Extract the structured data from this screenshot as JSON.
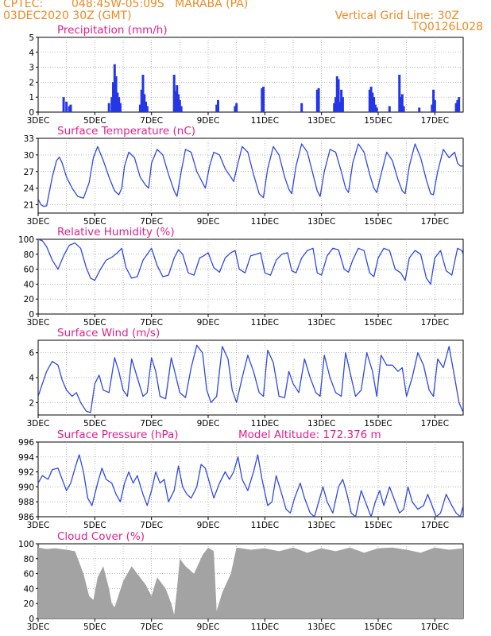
{
  "header": {
    "source": "CPTEC:",
    "location": "048:45W-05:09S   MARABA (PA)",
    "run": "03DEC2020 30Z (GMT)",
    "grid_note": "Vertical Grid Line: 30Z",
    "code": "TQ0126L028"
  },
  "colors": {
    "header": "#ee8a22",
    "title": "#e0208c",
    "series": "#2f49e3",
    "bars": "#2436e6",
    "cloud": "#a3a3a3",
    "grid": "#9a9a9a"
  },
  "chart_data": [
    {
      "type": "bar",
      "title": "Precipitation (mm/h)",
      "ylim": [
        0,
        5
      ],
      "yticks": [
        "0",
        "1",
        "2",
        "3",
        "4",
        "5"
      ],
      "x_start": "3DEC",
      "x_end": "18DEC",
      "xticks": [
        "3DEC",
        "5DEC",
        "7DEC",
        "9DEC",
        "11DEC",
        "13DEC",
        "15DEC",
        "17DEC"
      ],
      "grid": true,
      "x": [
        3.9,
        4.0,
        4.1,
        4.15,
        5.5,
        5.6,
        5.65,
        5.7,
        5.75,
        5.8,
        5.85,
        5.9,
        6.6,
        6.65,
        6.7,
        6.75,
        6.8,
        6.85,
        7.8,
        7.85,
        7.9,
        7.95,
        8.0,
        8.05,
        9.3,
        9.35,
        9.95,
        10.0,
        10.9,
        10.95,
        12.3,
        12.85,
        12.9,
        13.45,
        13.5,
        13.55,
        13.6,
        13.65,
        13.7,
        13.75,
        14.7,
        14.75,
        14.8,
        14.85,
        14.9,
        14.95,
        15.4,
        15.75,
        15.8,
        15.85,
        15.9,
        16.45,
        16.9,
        16.95,
        17.0,
        17.75,
        17.8,
        17.85
      ],
      "values": [
        1.0,
        0.7,
        0.4,
        0.5,
        0.6,
        1.0,
        2.0,
        3.2,
        2.4,
        1.3,
        1.0,
        0.6,
        0.5,
        1.5,
        2.5,
        1.2,
        0.7,
        0.4,
        2.5,
        1.4,
        1.8,
        1.2,
        0.8,
        0.4,
        0.5,
        0.8,
        0.4,
        0.6,
        1.6,
        1.7,
        0.6,
        1.5,
        1.6,
        0.6,
        1.0,
        2.4,
        2.2,
        0.7,
        1.5,
        1.0,
        1.5,
        1.7,
        1.3,
        1.0,
        0.5,
        0.3,
        0.4,
        2.5,
        1.0,
        1.2,
        0.4,
        0.3,
        0.5,
        1.5,
        0.8,
        0.6,
        0.8,
        1.0
      ]
    },
    {
      "type": "line",
      "title": "Surface Temperature (nC)",
      "ylim": [
        19.5,
        33
      ],
      "yticks": [
        "21",
        "24",
        "27",
        "30",
        "33"
      ],
      "x_start": "3DEC",
      "x_end": "18DEC",
      "xticks": [
        "3DEC",
        "5DEC",
        "7DEC",
        "9DEC",
        "11DEC",
        "13DEC",
        "15DEC",
        "17DEC"
      ],
      "grid": true,
      "x": [
        3.0,
        3.1,
        3.2,
        3.3,
        3.5,
        3.65,
        3.75,
        3.85,
        4.0,
        4.2,
        4.4,
        4.6,
        4.8,
        4.95,
        5.1,
        5.3,
        5.5,
        5.7,
        5.85,
        5.95,
        6.05,
        6.2,
        6.4,
        6.6,
        6.8,
        6.9,
        7.0,
        7.2,
        7.4,
        7.6,
        7.8,
        7.9,
        8.05,
        8.2,
        8.4,
        8.6,
        8.8,
        8.9,
        9.05,
        9.2,
        9.4,
        9.6,
        9.8,
        9.9,
        10.05,
        10.2,
        10.4,
        10.6,
        10.8,
        10.95,
        11.1,
        11.3,
        11.5,
        11.7,
        11.85,
        11.95,
        12.1,
        12.3,
        12.5,
        12.7,
        12.85,
        12.95,
        13.1,
        13.3,
        13.5,
        13.7,
        13.85,
        13.95,
        14.1,
        14.3,
        14.5,
        14.7,
        14.85,
        14.95,
        15.1,
        15.3,
        15.5,
        15.7,
        15.85,
        15.95,
        16.1,
        16.3,
        16.5,
        16.7,
        16.85,
        16.95,
        17.1,
        17.3,
        17.5,
        17.7,
        17.8,
        17.9,
        18.0
      ],
      "values": [
        22.0,
        21.0,
        20.7,
        20.8,
        26.0,
        29.0,
        29.6,
        28.5,
        26.0,
        24.0,
        22.5,
        22.2,
        25.0,
        29.5,
        31.5,
        29.0,
        26.0,
        23.5,
        22.8,
        24.0,
        28.0,
        30.5,
        29.5,
        26.0,
        24.5,
        24.0,
        28.5,
        31.0,
        30.0,
        26.5,
        23.5,
        22.5,
        27.0,
        31.0,
        30.5,
        27.0,
        25.0,
        24.0,
        28.0,
        30.5,
        30.0,
        27.5,
        26.0,
        25.2,
        28.5,
        31.5,
        30.5,
        26.5,
        23.0,
        22.3,
        27.5,
        31.5,
        30.0,
        26.0,
        23.8,
        23.0,
        28.0,
        32.0,
        30.5,
        26.5,
        23.5,
        22.5,
        27.0,
        31.0,
        30.5,
        27.0,
        24.0,
        23.2,
        28.5,
        32.0,
        30.5,
        26.5,
        24.0,
        23.2,
        26.5,
        30.5,
        29.0,
        25.5,
        23.5,
        23.0,
        28.0,
        32.0,
        29.5,
        25.5,
        23.0,
        22.8,
        27.0,
        31.0,
        29.5,
        30.5,
        28.5,
        28.0,
        28.0
      ]
    },
    {
      "type": "line",
      "title": "Relative Humidity (%)",
      "ylim": [
        0,
        100
      ],
      "yticks": [
        "0",
        "20",
        "40",
        "60",
        "80",
        "100"
      ],
      "x_start": "3DEC",
      "x_end": "18DEC",
      "xticks": [
        "3DEC",
        "5DEC",
        "7DEC",
        "9DEC",
        "11DEC",
        "13DEC",
        "15DEC",
        "17DEC"
      ],
      "grid": true,
      "x": [
        3.0,
        3.15,
        3.3,
        3.5,
        3.7,
        3.9,
        4.1,
        4.3,
        4.5,
        4.7,
        4.85,
        5.0,
        5.2,
        5.4,
        5.6,
        5.8,
        5.95,
        6.1,
        6.3,
        6.5,
        6.7,
        6.85,
        7.0,
        7.2,
        7.4,
        7.6,
        7.8,
        7.95,
        8.1,
        8.3,
        8.5,
        8.7,
        8.85,
        9.0,
        9.2,
        9.4,
        9.6,
        9.8,
        9.95,
        10.1,
        10.3,
        10.5,
        10.7,
        10.85,
        11.0,
        11.2,
        11.4,
        11.6,
        11.8,
        11.95,
        12.1,
        12.3,
        12.5,
        12.7,
        12.85,
        13.0,
        13.2,
        13.4,
        13.6,
        13.8,
        13.95,
        14.1,
        14.3,
        14.5,
        14.7,
        14.85,
        15.0,
        15.2,
        15.4,
        15.6,
        15.8,
        15.95,
        16.1,
        16.3,
        16.5,
        16.7,
        16.85,
        17.0,
        17.2,
        17.4,
        17.6,
        17.8,
        17.95,
        18.0
      ],
      "values": [
        100,
        98,
        90,
        72,
        60,
        78,
        92,
        95,
        88,
        62,
        48,
        45,
        60,
        72,
        76,
        82,
        88,
        62,
        48,
        50,
        72,
        80,
        88,
        65,
        50,
        52,
        75,
        86,
        80,
        55,
        52,
        75,
        78,
        82,
        62,
        56,
        75,
        82,
        85,
        60,
        55,
        78,
        80,
        82,
        55,
        52,
        72,
        80,
        82,
        58,
        55,
        75,
        85,
        88,
        55,
        52,
        78,
        88,
        86,
        60,
        56,
        72,
        88,
        85,
        55,
        50,
        75,
        88,
        85,
        60,
        55,
        45,
        75,
        85,
        80,
        48,
        40,
        75,
        85,
        58,
        52,
        88,
        85,
        80
      ]
    },
    {
      "type": "line",
      "title": "Surface Wind (m/s)",
      "ylim": [
        1,
        7
      ],
      "yticks": [
        "2",
        "4",
        "6"
      ],
      "x_start": "3DEC",
      "x_end": "18DEC",
      "xticks": [
        "3DEC",
        "5DEC",
        "7DEC",
        "9DEC",
        "11DEC",
        "13DEC",
        "15DEC",
        "17DEC"
      ],
      "grid": true,
      "x": [
        3.0,
        3.15,
        3.3,
        3.5,
        3.7,
        3.85,
        4.0,
        4.2,
        4.35,
        4.5,
        4.7,
        4.85,
        5.0,
        5.15,
        5.3,
        5.5,
        5.7,
        5.85,
        6.0,
        6.15,
        6.3,
        6.5,
        6.7,
        6.85,
        7.0,
        7.15,
        7.3,
        7.5,
        7.7,
        7.85,
        8.0,
        8.2,
        8.4,
        8.6,
        8.8,
        8.95,
        9.1,
        9.3,
        9.5,
        9.7,
        9.85,
        10.0,
        10.2,
        10.4,
        10.6,
        10.8,
        10.95,
        11.1,
        11.3,
        11.5,
        11.7,
        11.85,
        12.0,
        12.2,
        12.4,
        12.6,
        12.8,
        12.95,
        13.1,
        13.3,
        13.5,
        13.7,
        13.85,
        14.0,
        14.2,
        14.4,
        14.6,
        14.8,
        14.95,
        15.1,
        15.3,
        15.5,
        15.7,
        15.85,
        16.0,
        16.2,
        16.4,
        16.6,
        16.8,
        16.95,
        17.1,
        17.3,
        17.5,
        17.7,
        17.85,
        18.0
      ],
      "values": [
        2.5,
        3.5,
        4.5,
        5.3,
        5.0,
        3.8,
        3.0,
        2.5,
        2.8,
        2.0,
        1.3,
        1.2,
        3.5,
        4.2,
        3.0,
        2.8,
        5.6,
        4.5,
        3.0,
        2.5,
        5.5,
        4.0,
        2.5,
        2.8,
        5.6,
        4.5,
        2.5,
        2.3,
        5.6,
        4.2,
        2.8,
        2.4,
        4.8,
        6.6,
        6.0,
        3.0,
        2.0,
        2.5,
        6.5,
        5.5,
        3.0,
        2.0,
        4.0,
        5.8,
        4.5,
        2.8,
        2.5,
        6.2,
        5.2,
        2.5,
        2.4,
        4.5,
        3.5,
        2.8,
        5.5,
        4.0,
        2.8,
        2.5,
        5.8,
        4.0,
        2.8,
        2.5,
        6.0,
        4.5,
        2.5,
        3.0,
        6.0,
        4.5,
        2.5,
        5.8,
        5.0,
        5.0,
        4.5,
        4.8,
        2.5,
        4.0,
        6.0,
        5.0,
        3.0,
        2.5,
        5.5,
        4.8,
        6.5,
        4.0,
        2.0,
        1.2
      ]
    },
    {
      "type": "line",
      "title": "Surface Pressure (hPa)",
      "annotation": "Model Altitude: 172.376 m",
      "ylim": [
        986,
        996
      ],
      "yticks": [
        "986",
        "988",
        "990",
        "992",
        "994",
        "996"
      ],
      "x_start": "3DEC",
      "x_end": "18DEC",
      "xticks": [
        "3DEC",
        "5DEC",
        "7DEC",
        "9DEC",
        "11DEC",
        "13DEC",
        "15DEC",
        "17DEC"
      ],
      "grid": true,
      "x": [
        3.0,
        3.15,
        3.35,
        3.5,
        3.7,
        3.85,
        4.0,
        4.15,
        4.3,
        4.45,
        4.6,
        4.75,
        4.9,
        5.1,
        5.25,
        5.4,
        5.6,
        5.75,
        5.9,
        6.05,
        6.2,
        6.35,
        6.5,
        6.7,
        6.85,
        7.0,
        7.15,
        7.3,
        7.45,
        7.6,
        7.8,
        7.95,
        8.1,
        8.25,
        8.4,
        8.6,
        8.75,
        8.9,
        9.05,
        9.2,
        9.4,
        9.6,
        9.75,
        9.9,
        10.05,
        10.2,
        10.4,
        10.6,
        10.75,
        10.9,
        11.1,
        11.25,
        11.4,
        11.6,
        11.75,
        11.9,
        12.05,
        12.25,
        12.4,
        12.6,
        12.75,
        12.9,
        13.05,
        13.2,
        13.4,
        13.6,
        13.75,
        13.9,
        14.05,
        14.2,
        14.4,
        14.6,
        14.75,
        14.9,
        15.05,
        15.2,
        15.4,
        15.6,
        15.75,
        15.9,
        16.05,
        16.2,
        16.4,
        16.6,
        16.75,
        16.9,
        17.05,
        17.2,
        17.4,
        17.6,
        17.75,
        17.9,
        18.0
      ],
      "values": [
        990.5,
        991.5,
        991.0,
        992.3,
        992.5,
        991.0,
        989.5,
        990.5,
        992.5,
        994.3,
        992.0,
        988.5,
        987.5,
        990.5,
        992.5,
        991.0,
        990.5,
        989.0,
        988.0,
        990.5,
        992.0,
        990.5,
        991.5,
        989.0,
        987.5,
        989.5,
        992.0,
        990.5,
        991.0,
        988.0,
        989.5,
        992.8,
        990.0,
        989.0,
        988.5,
        990.0,
        993.0,
        992.5,
        990.5,
        988.5,
        990.5,
        992.0,
        991.0,
        992.0,
        994.0,
        991.0,
        989.5,
        992.0,
        994.3,
        991.0,
        987.5,
        988.0,
        991.5,
        989.0,
        987.0,
        986.5,
        988.5,
        990.5,
        988.5,
        986.5,
        986.0,
        988.0,
        990.0,
        988.0,
        986.5,
        990.0,
        991.0,
        989.0,
        986.5,
        986.0,
        989.5,
        987.5,
        986.0,
        988.0,
        989.5,
        987.5,
        990.0,
        988.0,
        986.5,
        987.0,
        990.0,
        988.0,
        987.0,
        987.5,
        989.0,
        987.5,
        986.0,
        986.5,
        989.0,
        987.5,
        986.5,
        986.0,
        987.5
      ]
    },
    {
      "type": "area",
      "title": "Cloud Cover (%)",
      "ylim": [
        0,
        100
      ],
      "yticks": [
        "0",
        "20",
        "40",
        "60",
        "80",
        "100"
      ],
      "x_start": "3DEC",
      "x_end": "18DEC",
      "xticks": [
        "3DEC",
        "5DEC",
        "7DEC",
        "9DEC",
        "11DEC",
        "13DEC",
        "15DEC",
        "17DEC"
      ],
      "grid": true,
      "x": [
        3.0,
        3.3,
        3.6,
        4.0,
        4.3,
        4.6,
        4.8,
        4.95,
        5.1,
        5.3,
        5.5,
        5.6,
        5.7,
        6.0,
        6.3,
        6.5,
        6.8,
        7.0,
        7.2,
        7.5,
        7.7,
        7.8,
        7.9,
        8.0,
        8.2,
        8.5,
        8.8,
        9.0,
        9.2,
        9.3,
        9.5,
        9.8,
        10.0,
        10.5,
        11.0,
        11.5,
        12.0,
        12.5,
        13.0,
        13.5,
        14.0,
        14.5,
        15.0,
        15.5,
        16.0,
        16.5,
        17.0,
        17.5,
        18.0
      ],
      "values": [
        95,
        93,
        94,
        92,
        90,
        60,
        30,
        25,
        55,
        70,
        40,
        20,
        15,
        50,
        70,
        60,
        45,
        30,
        55,
        40,
        20,
        5,
        40,
        80,
        70,
        60,
        85,
        95,
        90,
        10,
        35,
        60,
        95,
        92,
        94,
        90,
        95,
        88,
        94,
        90,
        95,
        88,
        94,
        95,
        92,
        88,
        95,
        92,
        94
      ]
    }
  ]
}
